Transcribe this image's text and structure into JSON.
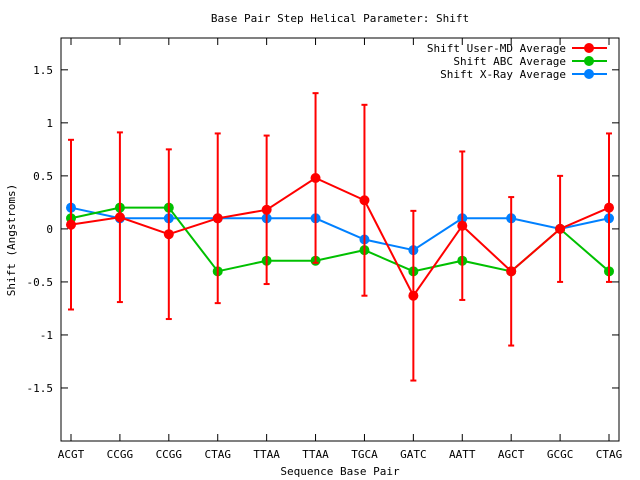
{
  "chart_data": {
    "type": "line",
    "title": "Base Pair Step Helical Parameter: Shift",
    "xlabel": "Sequence Base Pair",
    "ylabel": "Shift (Angstroms)",
    "categories": [
      "ACGT",
      "CCGG",
      "CCGG",
      "CTAG",
      "TTAA",
      "TTAA",
      "TGCA",
      "GATC",
      "AATT",
      "AGCT",
      "GCGC",
      "CTAG"
    ],
    "ylim": [
      -2,
      1.8
    ],
    "yticks": [
      -1.5,
      -1,
      -0.5,
      0,
      0.5,
      1,
      1.5
    ],
    "ytick_labels": [
      "-1.5",
      "-1",
      "-0.5",
      "0",
      "0.5",
      "1",
      "1.5"
    ],
    "legend_position": "top-right",
    "grid": false,
    "series": [
      {
        "name": "Shift User-MD Average",
        "color": "#ff0000",
        "values": [
          0.04,
          0.11,
          -0.05,
          0.1,
          0.18,
          0.48,
          0.27,
          -0.63,
          0.03,
          -0.4,
          0,
          0.2
        ],
        "error": [
          0.8,
          0.8,
          0.8,
          0.8,
          0.7,
          0.8,
          0.9,
          0.8,
          0.7,
          0.7,
          0.5,
          0.7
        ]
      },
      {
        "name": "Shift ABC Average",
        "color": "#00c000",
        "values": [
          0.1,
          0.2,
          0.2,
          -0.4,
          -0.3,
          -0.3,
          -0.2,
          -0.4,
          -0.3,
          -0.4,
          0,
          -0.4
        ]
      },
      {
        "name": "Shift X-Ray Average",
        "color": "#0080ff",
        "values": [
          0.2,
          0.1,
          0.1,
          0.1,
          0.1,
          0.1,
          -0.1,
          -0.2,
          0.1,
          0.1,
          0,
          0.1
        ]
      }
    ]
  }
}
